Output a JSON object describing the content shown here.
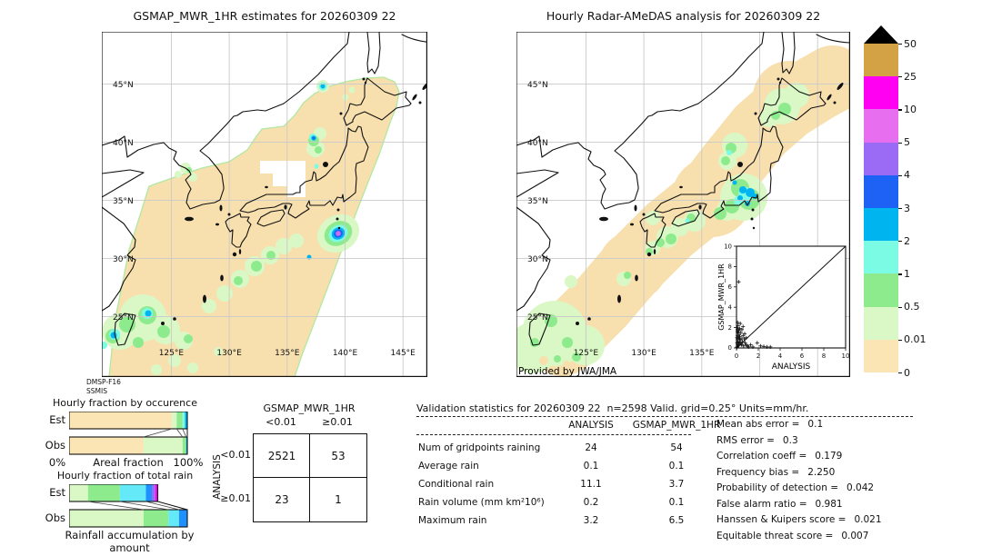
{
  "left_map": {
    "title": "GSMAP_MWR_1HR estimates for 20260309 22",
    "lat_labels": [
      "45°N",
      "40°N",
      "35°N",
      "30°N",
      "25°N"
    ],
    "lon_labels": [
      "125°E",
      "130°E",
      "135°E",
      "140°E",
      "145°E"
    ],
    "source1": "DMSP-F16",
    "source2": "SSMIS"
  },
  "right_map": {
    "title": "Hourly Radar-AMeDAS analysis for 20260309 22",
    "lat_labels": [
      "45°N",
      "40°N",
      "35°N",
      "30°N",
      "25°N"
    ],
    "lon_labels": [
      "125°E",
      "130°E",
      "135°E"
    ],
    "credit": "Provided by JWA/JMA"
  },
  "colorbar": {
    "labels": [
      "50",
      "25",
      "10",
      "5",
      "4",
      "3",
      "2",
      "1",
      "0.5",
      "0.01",
      "0"
    ],
    "colors": [
      "#D2A245",
      "#FF00F2",
      "#E86EF0",
      "#9B6BF5",
      "#1E62F5",
      "#00B4F0",
      "#7CFBE4",
      "#8DEB8D",
      "#D9F8C5",
      "#FBE5B5"
    ],
    "overflow_color": "#000000"
  },
  "occurrence_chart": {
    "title": "Hourly fraction by occurence",
    "row_labels": [
      "Est",
      "Obs"
    ],
    "x_left_label": "0%",
    "x_title": "Areal fraction",
    "x_right_label": "100%",
    "est_total": 100,
    "obs_total": 100,
    "est_segments": [
      {
        "color": "#FBE5B5",
        "pct": 87
      },
      {
        "color": "#D9F8C5",
        "pct": 4
      },
      {
        "color": "#8DEB8D",
        "pct": 5
      },
      {
        "color": "#7CFBE4",
        "pct": 2
      },
      {
        "color": "#00B4F0",
        "pct": 2
      }
    ],
    "obs_segments": [
      {
        "color": "#FBE5B5",
        "pct": 63
      },
      {
        "color": "#D9F8C5",
        "pct": 33
      },
      {
        "color": "#8DEB8D",
        "pct": 3
      },
      {
        "color": "#00B4F0",
        "pct": 1
      }
    ]
  },
  "totalrain_chart": {
    "title": "Hourly fraction of total rain",
    "row_labels": [
      "Est",
      "Obs"
    ],
    "bottom_label": "Rainfall accumulation by amount",
    "est_total": 75,
    "obs_total": 100,
    "est_segments": [
      {
        "color": "#D9F8C5",
        "pct": 16
      },
      {
        "color": "#8DEB8D",
        "pct": 27
      },
      {
        "color": "#63E9F7",
        "pct": 22
      },
      {
        "color": "#1E90FF",
        "pct": 5
      },
      {
        "color": "#9B6BF5",
        "pct": 3
      },
      {
        "color": "#FF00F2",
        "pct": 2
      }
    ],
    "obs_segments": [
      {
        "color": "#D9F8C5",
        "pct": 63
      },
      {
        "color": "#8DEB8D",
        "pct": 21
      },
      {
        "color": "#63E9F7",
        "pct": 9
      },
      {
        "color": "#1E90FF",
        "pct": 7
      }
    ]
  },
  "contingency": {
    "title": "GSMAP_MWR_1HR",
    "col_labels": [
      "<0.01",
      "≥0.01"
    ],
    "row_axis_label": "ANALYSIS",
    "row_labels": [
      "<0.01",
      "≥0.01"
    ],
    "values": [
      [
        "2521",
        "53"
      ],
      [
        "23",
        "1"
      ]
    ]
  },
  "validation": {
    "header": "Validation statistics for 20260309 22  n=2598 Valid. grid=0.25° Units=mm/hr.",
    "col_headers": [
      "ANALYSIS",
      "GSMAP_MWR_1HR"
    ],
    "rows": [
      {
        "label": "Num of gridpoints raining",
        "analysis": "24",
        "gsmap": "54"
      },
      {
        "label": "Average rain",
        "analysis": "0.1",
        "gsmap": "0.1"
      },
      {
        "label": "Conditional rain",
        "analysis": "11.1",
        "gsmap": "3.7"
      },
      {
        "label": "Rain volume (mm km²10⁶)",
        "analysis": "0.2",
        "gsmap": "0.1"
      },
      {
        "label": "Maximum rain",
        "analysis": "3.2",
        "gsmap": "6.5"
      }
    ],
    "stats": [
      {
        "label": "Mean abs error =",
        "value": "0.1"
      },
      {
        "label": "RMS error =",
        "value": "0.3"
      },
      {
        "label": "Correlation coeff =",
        "value": "0.179"
      },
      {
        "label": "Frequency bias =",
        "value": "2.250"
      },
      {
        "label": "Probability of detection =",
        "value": "0.042"
      },
      {
        "label": "False alarm ratio =",
        "value": "0.981"
      },
      {
        "label": "Hanssen & Kuipers score =",
        "value": "0.021"
      },
      {
        "label": "Equitable threat score =",
        "value": "0.007"
      }
    ]
  },
  "inset": {
    "xlabel": "ANALYSIS",
    "ylabel": "GSMAP_MWR_1HR",
    "xticks": [
      "0",
      "2",
      "4",
      "6",
      "8",
      "10"
    ],
    "yticks": [
      "0",
      "2",
      "4",
      "6",
      "8",
      "10"
    ]
  },
  "chart_data": [
    {
      "type": "heatmap",
      "title": "GSMAP_MWR_1HR estimates for 20260309 22",
      "description": "Satellite microwave rain-rate swath (mm/hr) over Japan region; diagonal swath of valid data with rain cells near 25N/125E, a strong cell near 32N/140.5E (center 5-10 mm/hr), light rain off Tohoku",
      "x_ticks": [
        "125°E",
        "130°E",
        "135°E",
        "140°E",
        "145°E"
      ],
      "y_ticks": [
        "45°N",
        "40°N",
        "35°N",
        "30°N",
        "25°N"
      ],
      "colorscale_bounds": [
        0,
        0.01,
        0.5,
        1,
        2,
        3,
        4,
        5,
        10,
        25,
        50
      ],
      "source": "DMSP-F16 SSMIS"
    },
    {
      "type": "heatmap",
      "title": "Hourly Radar-AMeDAS analysis for 20260309 22",
      "description": "Radar-gauge analyzed rain (mm/hr) along Japan archipelago coverage; light rain patches, 2-3 mm/hr cells near Kanto (36N/140E), light rain near Okinawa",
      "x_ticks": [
        "125°E",
        "130°E",
        "135°E"
      ],
      "y_ticks": [
        "45°N",
        "40°N",
        "35°N",
        "30°N",
        "25°N"
      ],
      "credit": "Provided by JWA/JMA"
    },
    {
      "type": "scatter",
      "xlabel": "ANALYSIS",
      "ylabel": "GSMAP_MWR_1HR",
      "xlim": [
        0,
        10
      ],
      "ylim": [
        0,
        10
      ],
      "diagonal": true,
      "points": [
        [
          0.05,
          0.1
        ],
        [
          0.1,
          0.3
        ],
        [
          0.05,
          0.5
        ],
        [
          0.15,
          0.2
        ],
        [
          0.1,
          0.8
        ],
        [
          0.2,
          0.5
        ],
        [
          0.05,
          1.0
        ],
        [
          0.1,
          1.2
        ],
        [
          0.2,
          1.0
        ],
        [
          0.3,
          0.6
        ],
        [
          0.15,
          1.5
        ],
        [
          0.1,
          1.8
        ],
        [
          0.25,
          1.3
        ],
        [
          0.05,
          2.0
        ],
        [
          0.2,
          1.7
        ],
        [
          0.3,
          1.1
        ],
        [
          0.35,
          0.8
        ],
        [
          0.4,
          0.4
        ],
        [
          0.3,
          1.9
        ],
        [
          0.15,
          2.2
        ],
        [
          0.1,
          2.5
        ],
        [
          0.4,
          1.5
        ],
        [
          0.5,
          0.9
        ],
        [
          0.45,
          0.3
        ],
        [
          0.5,
          1.8
        ],
        [
          0.6,
          1.2
        ],
        [
          0.55,
          0.6
        ],
        [
          0.65,
          0.2
        ],
        [
          0.7,
          0.9
        ],
        [
          0.8,
          0.5
        ],
        [
          0.9,
          0.3
        ],
        [
          0.75,
          1.4
        ],
        [
          1.0,
          0.2
        ],
        [
          1.1,
          0.1
        ],
        [
          0.2,
          6.5
        ],
        [
          1.9,
          0.5
        ],
        [
          2.2,
          0.2
        ],
        [
          2.5,
          0.15
        ],
        [
          2.8,
          0.1
        ],
        [
          3.1,
          0.1
        ],
        [
          1.5,
          0.1
        ],
        [
          1.3,
          0.3
        ],
        [
          0.9,
          1.0
        ],
        [
          0.6,
          2.1
        ],
        [
          0.35,
          2.4
        ],
        [
          0.05,
          0.05
        ],
        [
          0.12,
          0.6
        ],
        [
          0.22,
          0.3
        ],
        [
          0.08,
          1.6
        ],
        [
          0.28,
          0.9
        ]
      ]
    },
    {
      "type": "bar",
      "title": "Hourly fraction by occurence",
      "categories": [
        "Est",
        "Obs"
      ],
      "stacked_pct": {
        "Est": [
          87,
          4,
          5,
          2,
          2
        ],
        "Obs": [
          63,
          33,
          3,
          1
        ]
      },
      "xlabel": "Areal fraction",
      "xlim": [
        "0%",
        "100%"
      ]
    },
    {
      "type": "bar",
      "title": "Hourly fraction of total rain",
      "categories": [
        "Est",
        "Obs"
      ],
      "stacked_pct": {
        "Est": [
          16,
          27,
          22,
          5,
          3,
          2
        ],
        "Obs": [
          63,
          21,
          9,
          7
        ]
      },
      "xlabel": "Rainfall accumulation by amount"
    },
    {
      "type": "table",
      "title": "GSMAP_MWR_1HR vs ANALYSIS contingency",
      "columns": [
        "<0.01",
        "≥0.01"
      ],
      "rows": [
        [
          "2521",
          "53"
        ],
        [
          "23",
          "1"
        ]
      ]
    },
    {
      "type": "table",
      "title": "Validation statistics for 20260309 22",
      "columns": [
        "",
        "ANALYSIS",
        "GSMAP_MWR_1HR"
      ],
      "rows": [
        [
          "Num of gridpoints raining",
          24,
          54
        ],
        [
          "Average rain",
          0.1,
          0.1
        ],
        [
          "Conditional rain",
          11.1,
          3.7
        ],
        [
          "Rain volume (mm km²10⁶)",
          0.2,
          0.1
        ],
        [
          "Maximum rain",
          3.2,
          6.5
        ]
      ]
    }
  ]
}
